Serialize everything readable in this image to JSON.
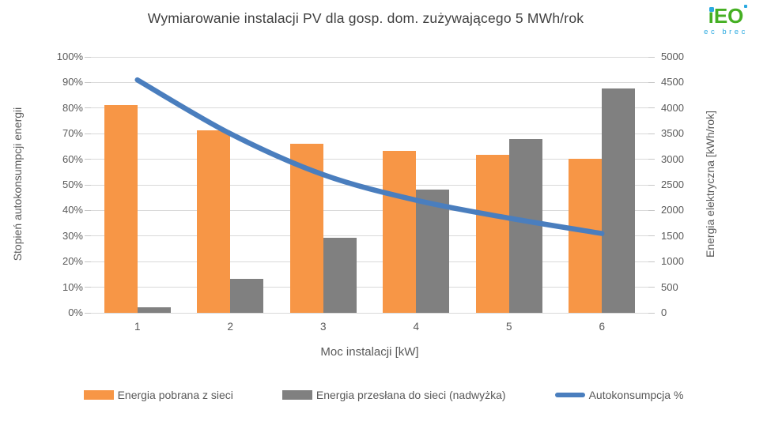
{
  "title": "Wymiarowanie instalacji PV dla gosp. dom. zużywającego 5 MWh/rok",
  "logo": {
    "text": "iEO",
    "subtext": "ec brec",
    "green": "#45AF23",
    "blue": "#2BA9E0"
  },
  "colors": {
    "grid": "#D9D9D9",
    "tick": "#C6C6C6",
    "text": "#595959",
    "title": "#404040",
    "background": "#FFFFFF"
  },
  "chart_data": {
    "type": "combo",
    "categories": [
      "1",
      "2",
      "3",
      "4",
      "5",
      "6"
    ],
    "series": [
      {
        "name": "Energia pobrana z sieci",
        "type": "bar",
        "axis": "right",
        "color": "#F79646",
        "values": [
          4060,
          3560,
          3300,
          3160,
          3080,
          3010
        ]
      },
      {
        "name": "Energia przesłana do sieci (nadwyżka)",
        "type": "bar",
        "axis": "right",
        "color": "#808080",
        "values": [
          110,
          660,
          1470,
          2400,
          3390,
          4380
        ]
      },
      {
        "name": "Autokonsumpcja %",
        "type": "line",
        "axis": "left",
        "color": "#4A7EBE",
        "values": [
          91,
          70,
          54,
          44,
          37,
          31
        ]
      }
    ],
    "xlabel": "Moc instalacji [kW]",
    "y_left": {
      "title": "Stopień autokonsumpcji energii",
      "ticks": [
        "0%",
        "10%",
        "20%",
        "30%",
        "40%",
        "50%",
        "60%",
        "70%",
        "80%",
        "90%",
        "100%"
      ],
      "range": [
        0,
        100
      ]
    },
    "y_right": {
      "title": "Energia elektryczna [kWh/rok]",
      "ticks": [
        "0",
        "500",
        "1000",
        "1500",
        "2000",
        "2500",
        "3000",
        "3500",
        "4000",
        "4500",
        "5000"
      ],
      "range": [
        0,
        5000
      ]
    },
    "grid": true,
    "legend_position": "bottom"
  }
}
